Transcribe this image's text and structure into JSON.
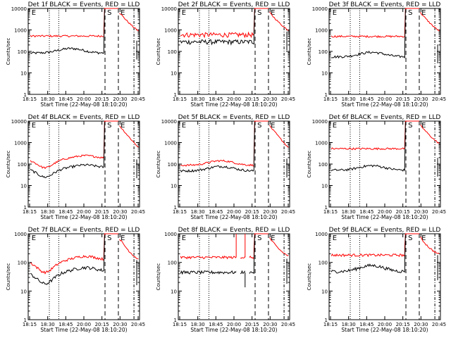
{
  "chart_data": [
    {
      "type": "line",
      "title": "Det 1f BLACK = Events, RED = LLD",
      "ylabel": "Counts/sec",
      "xlabel": "Start Time (22-May-08 18:10:20)",
      "ylim": [
        1,
        10000
      ],
      "yscale": "log",
      "ytick_labels": [
        "1",
        "10",
        "100",
        "1000",
        "10000"
      ],
      "xtick_labels": [
        "18:15",
        "18:30",
        "18:45",
        "20:00",
        "20:15",
        "20:30",
        "20:45"
      ],
      "markers": [
        "E",
        "S",
        "E"
      ],
      "events_level": 105,
      "lld_level": 520,
      "events_shape": "hump",
      "lld_shape": "flat",
      "colors": {
        "events": "#000000",
        "lld": "#ff0000"
      }
    },
    {
      "type": "line",
      "title": "Det 2f BLACK = Events, RED = LLD",
      "ylabel": "Counts/sec",
      "xlabel": "Start Time (22-May-08 18:10:20)",
      "ylim": [
        1,
        10000
      ],
      "yscale": "log",
      "ytick_labels": [
        "1",
        "10",
        "100",
        "1000",
        "10000"
      ],
      "xtick_labels": [
        "18:15",
        "18:30",
        "18:45",
        "20:00",
        "20:15",
        "20:30",
        "20:45"
      ],
      "markers": [
        "E",
        "S",
        "E"
      ],
      "events_level": 280,
      "lld_level": 600,
      "events_shape": "noisy",
      "lld_shape": "noisy",
      "colors": {
        "events": "#000000",
        "lld": "#ff0000"
      }
    },
    {
      "type": "line",
      "title": "Det 3f BLACK = Events, RED = LLD",
      "ylabel": "Counts/sec",
      "xlabel": "Start Time (22-May-08 18:10:20)",
      "ylim": [
        1,
        10000
      ],
      "yscale": "log",
      "ytick_labels": [
        "1",
        "10",
        "100",
        "1000",
        "10000"
      ],
      "xtick_labels": [
        "18:15",
        "18:30",
        "18:45",
        "20:00",
        "20:15",
        "20:30",
        "20:45"
      ],
      "markers": [
        "E",
        "S",
        "E"
      ],
      "events_level": 70,
      "lld_level": 500,
      "events_shape": "hump",
      "lld_shape": "flat",
      "colors": {
        "events": "#000000",
        "lld": "#ff0000"
      }
    },
    {
      "type": "line",
      "title": "Det 4f BLACK = Events, RED = LLD",
      "ylabel": "Counts/sec",
      "xlabel": "Start Time (22-May-08 18:10:20)",
      "ylim": [
        1,
        10000
      ],
      "yscale": "log",
      "ytick_labels": [
        "1",
        "10",
        "100",
        "1000",
        "10000"
      ],
      "xtick_labels": [
        "18:15",
        "18:30",
        "18:45",
        "20:00",
        "20:15",
        "20:30",
        "20:45"
      ],
      "markers": [
        "E",
        "S",
        "E"
      ],
      "events_level": 55,
      "lld_level": 150,
      "events_shape": "valley",
      "lld_shape": "valley",
      "colors": {
        "events": "#000000",
        "lld": "#ff0000"
      }
    },
    {
      "type": "line",
      "title": "Det 5f BLACK = Events, RED = LLD",
      "ylabel": "Counts/sec",
      "xlabel": "Start Time (22-May-08 18:10:20)",
      "ylim": [
        1,
        10000
      ],
      "yscale": "log",
      "ytick_labels": [
        "1",
        "10",
        "100",
        "1000",
        "10000"
      ],
      "xtick_labels": [
        "18:15",
        "18:30",
        "18:45",
        "20:00",
        "20:15",
        "20:30",
        "20:45"
      ],
      "markers": [
        "E",
        "S",
        "E"
      ],
      "events_level": 60,
      "lld_level": 110,
      "events_shape": "hump",
      "lld_shape": "hump",
      "colors": {
        "events": "#000000",
        "lld": "#ff0000"
      }
    },
    {
      "type": "line",
      "title": "Det 6f BLACK = Events, RED = LLD",
      "ylabel": "Counts/sec",
      "xlabel": "Start Time (22-May-08 18:10:20)",
      "ylim": [
        1,
        10000
      ],
      "yscale": "log",
      "ytick_labels": [
        "1",
        "10",
        "100",
        "1000",
        "10000"
      ],
      "xtick_labels": [
        "18:15",
        "18:30",
        "18:45",
        "20:00",
        "20:15",
        "20:30",
        "20:45"
      ],
      "markers": [
        "E",
        "S",
        "E"
      ],
      "events_level": 65,
      "lld_level": 520,
      "events_shape": "hump",
      "lld_shape": "flat",
      "colors": {
        "events": "#000000",
        "lld": "#ff0000"
      }
    },
    {
      "type": "line",
      "title": "Det 7f BLACK = Events, RED = LLD",
      "ylabel": "Counts/sec",
      "xlabel": "Start Time (22-May-08 18:10:20)",
      "ylim": [
        1,
        1000
      ],
      "yscale": "log",
      "ytick_labels": [
        "1",
        "10",
        "100",
        "1000"
      ],
      "xtick_labels": [
        "18:15",
        "18:30",
        "18:45",
        "20:00",
        "20:15",
        "20:30",
        "20:45"
      ],
      "markers": [
        "E",
        "S",
        "E"
      ],
      "events_level": 40,
      "lld_level": 100,
      "events_shape": "valley",
      "lld_shape": "valley",
      "colors": {
        "events": "#000000",
        "lld": "#ff0000"
      }
    },
    {
      "type": "line",
      "title": "Det 8f BLACK = Events, RED = LLD",
      "ylabel": "Counts/sec",
      "xlabel": "Start Time (22-May-08 18:10:20)",
      "ylim": [
        1,
        1000
      ],
      "yscale": "log",
      "ytick_labels": [
        "1",
        "10",
        "100",
        "1000"
      ],
      "xtick_labels": [
        "18:15",
        "18:30",
        "18:45",
        "20:00",
        "20:15",
        "20:30",
        "20:45"
      ],
      "markers": [
        "E",
        "S",
        "E"
      ],
      "events_level": 45,
      "lld_level": 150,
      "events_shape": "gappy",
      "lld_shape": "gappy",
      "colors": {
        "events": "#000000",
        "lld": "#ff0000"
      }
    },
    {
      "type": "line",
      "title": "Det 9f BLACK = Events, RED = LLD",
      "ylabel": "Counts/sec",
      "xlabel": "Start Time (22-May-08 18:10:20)",
      "ylim": [
        1,
        1000
      ],
      "yscale": "log",
      "ytick_labels": [
        "1",
        "10",
        "100",
        "1000"
      ],
      "xtick_labels": [
        "18:15",
        "18:30",
        "18:45",
        "20:00",
        "20:15",
        "20:30",
        "20:45"
      ],
      "markers": [
        "E",
        "S",
        "E"
      ],
      "events_level": 60,
      "lld_level": 180,
      "events_shape": "hump",
      "lld_shape": "flat",
      "colors": {
        "events": "#000000",
        "lld": "#ff0000"
      }
    }
  ]
}
